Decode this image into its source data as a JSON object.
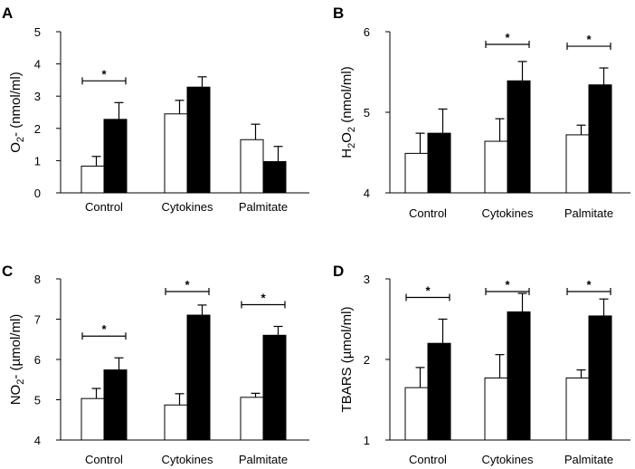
{
  "chart_data": [
    {
      "panel": "A",
      "type": "bar",
      "ylabel": "O2- (nmol/ml)",
      "ylabel_parts": {
        "main": "O",
        "sub": "2",
        "rest": "- (nmol/ml)"
      },
      "categories": [
        "Control",
        "Cytokines",
        "Palmitate"
      ],
      "ylim": [
        0,
        5
      ],
      "yticks": [
        "0",
        "1",
        "2",
        "3",
        "4",
        "5"
      ],
      "series": [
        {
          "name": "open bars",
          "fill": "#ffffff",
          "values": [
            0.83,
            2.45,
            1.65
          ],
          "errors": [
            0.3,
            0.42,
            0.48
          ]
        },
        {
          "name": "filled bars",
          "fill": "#000000",
          "values": [
            2.28,
            3.28,
            0.97
          ],
          "errors": [
            0.52,
            0.32,
            0.47
          ]
        }
      ],
      "significance": [
        {
          "category": 0,
          "label": "*"
        }
      ]
    },
    {
      "panel": "B",
      "type": "bar",
      "ylabel": "H2O2 (nmol/ml)",
      "ylabel_parts": {
        "main": "H",
        "sub": "2",
        "main2": "O",
        "sub2": "2",
        "rest": " (nmol/ml)"
      },
      "categories": [
        "Control",
        "Cytokines",
        "Palmitate"
      ],
      "ylim": [
        4,
        6
      ],
      "yticks": [
        "4",
        "5",
        "6"
      ],
      "series": [
        {
          "name": "open bars",
          "fill": "#ffffff",
          "values": [
            4.49,
            4.64,
            4.72
          ],
          "errors": [
            0.25,
            0.28,
            0.12
          ]
        },
        {
          "name": "filled bars",
          "fill": "#000000",
          "values": [
            4.74,
            5.39,
            5.34
          ],
          "errors": [
            0.3,
            0.24,
            0.21
          ]
        }
      ],
      "significance": [
        {
          "category": 1,
          "label": "*"
        },
        {
          "category": 2,
          "label": "*"
        }
      ]
    },
    {
      "panel": "C",
      "type": "bar",
      "ylabel": "NO2- (µmol/ml)",
      "ylabel_parts": {
        "main": "NO",
        "sub": "2",
        "rest": "- (µmol/ml)"
      },
      "categories": [
        "Control",
        "Cytokines",
        "Palmitate"
      ],
      "ylim": [
        4,
        8
      ],
      "yticks": [
        "4",
        "5",
        "6",
        "7",
        "8"
      ],
      "series": [
        {
          "name": "open bars",
          "fill": "#ffffff",
          "values": [
            5.03,
            4.87,
            5.06
          ],
          "errors": [
            0.25,
            0.28,
            0.1
          ]
        },
        {
          "name": "filled bars",
          "fill": "#000000",
          "values": [
            5.74,
            7.1,
            6.6
          ],
          "errors": [
            0.3,
            0.25,
            0.22
          ]
        }
      ],
      "significance": [
        {
          "category": 0,
          "label": "*"
        },
        {
          "category": 1,
          "label": "*"
        },
        {
          "category": 2,
          "label": "*"
        }
      ]
    },
    {
      "panel": "D",
      "type": "bar",
      "ylabel": "TBARS (µmol/ml)",
      "ylabel_parts": {
        "main": "TBARS (µmol/ml)",
        "sub": "",
        "rest": ""
      },
      "categories": [
        "Control",
        "Cytokines",
        "Palmitate"
      ],
      "ylim": [
        1,
        3
      ],
      "yticks": [
        "1",
        "2",
        "3"
      ],
      "series": [
        {
          "name": "open bars",
          "fill": "#ffffff",
          "values": [
            1.65,
            1.77,
            1.77
          ],
          "errors": [
            0.25,
            0.29,
            0.1
          ]
        },
        {
          "name": "filled bars",
          "fill": "#000000",
          "values": [
            2.2,
            2.59,
            2.54
          ],
          "errors": [
            0.3,
            0.23,
            0.21
          ]
        }
      ],
      "significance": [
        {
          "category": 0,
          "label": "*"
        },
        {
          "category": 1,
          "label": "*"
        },
        {
          "category": 2,
          "label": "*"
        }
      ]
    }
  ]
}
